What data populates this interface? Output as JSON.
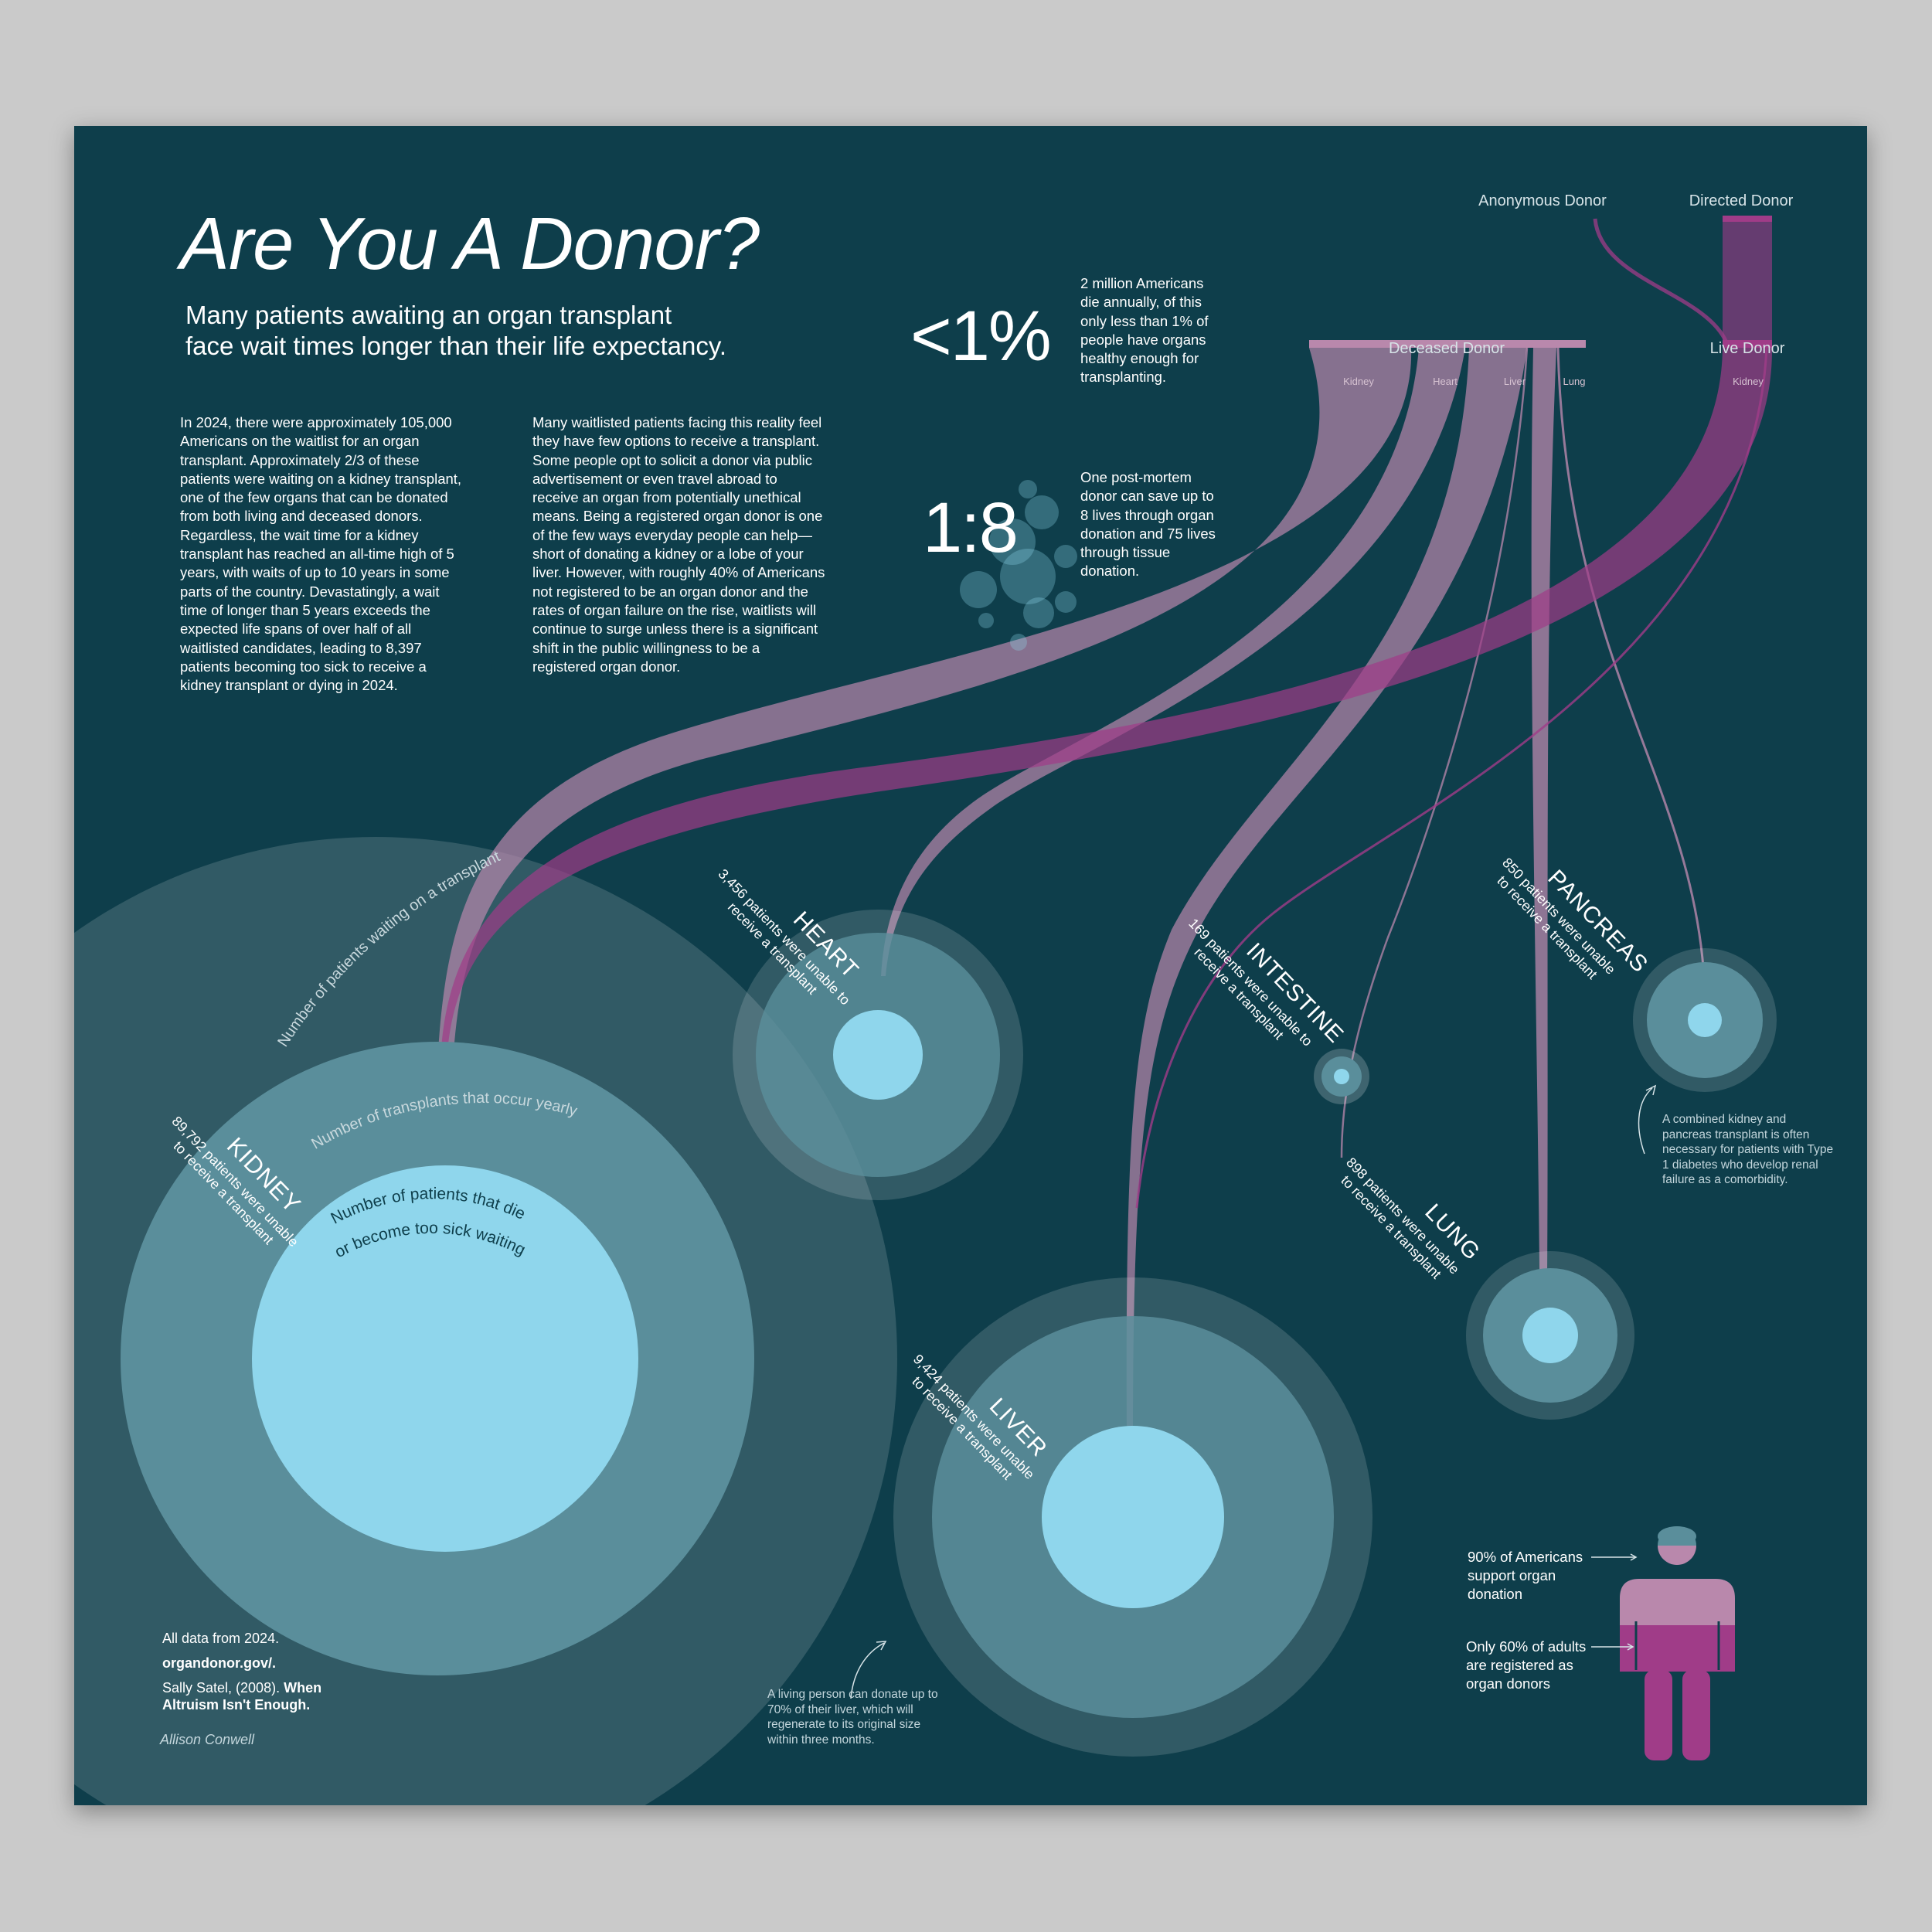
{
  "title": "Are You A Donor?",
  "subtitle_line1": "Many patients awaiting an organ transplant",
  "subtitle_line2": "face wait times longer than their life expectancy.",
  "intro_col1": "In 2024, there were approximately 105,000 Americans on the waitlist for an organ transplant. Approximately 2/3 of these patients were waiting on a kidney transplant, one of the few organs that can be donated from both living and deceased donors. Regardless, the wait time for a kidney transplant has reached an all-time high of 5 years, with waits of up to 10 years in some parts of the country. Devastatingly, a wait time of longer than 5 years exceeds the expected life spans of over half of all waitlisted candidates, leading to 8,397 patients becoming too sick to receive a kidney transplant or dying in 2024.",
  "intro_col2": "Many waitlisted patients facing this reality feel they have few options to receive a transplant. Some people opt to solicit a donor via public advertisement or even travel abroad to receive an organ from potentially unethical means. Being a registered organ donor is one of the few ways everyday people can help—short of donating a kidney or a lobe of your liver. However, with roughly 40% of Americans not registered to be an organ donor and the rates of organ failure on the rise, waitlists will continue to surge unless there is a significant shift in the public willingness to be a registered organ donor.",
  "stat1": {
    "value": "<1%",
    "text": "2 million Americans die annually, of this only less than 1% of people have organs healthy enough for transplanting."
  },
  "stat2": {
    "value": "1:8",
    "text": "One post-mortem donor can save up to 8 lives through organ donation and 75 lives through tissue donation."
  },
  "donors": {
    "anonymous": "Anonymous Donor",
    "directed": "Directed Donor",
    "deceased": "Deceased Donor",
    "live": "Live Donor",
    "deceased_organs": [
      "Kidney",
      "Heart",
      "Liver",
      "Lung"
    ],
    "live_organs": [
      "Kidney"
    ]
  },
  "legend": {
    "waiting": "Number of patients waiting on a transplant",
    "transplants": "Number of transplants that occur yearly",
    "die_line1": "Number of patients that die",
    "die_line2": "or become too sick waiting"
  },
  "organs": {
    "kidney": {
      "name": "KIDNEY",
      "line1": "89,792 patients were unable",
      "line2": "to receive a transplant"
    },
    "heart": {
      "name": "HEART",
      "line1": "3,456 patients were unable to",
      "line2": "receive a transplant"
    },
    "intestine": {
      "name": "INTESTINE",
      "line1": "169 patients were unable to",
      "line2": "receive a transplant"
    },
    "pancreas": {
      "name": "PANCREAS",
      "line1": "850 patients were unable",
      "line2": "to receive a transplant"
    },
    "lung": {
      "name": "LUNG",
      "line1": "898 patients were unable",
      "line2": "to receive a transplant"
    },
    "liver": {
      "name": "LIVER",
      "line1": "9,424 patients were unable",
      "line2": "to receive a transplant"
    }
  },
  "notes": {
    "pancreas": "A combined kidney and pancreas transplant is often necessary for patients with Type 1 diabetes who develop renal failure as a comorbidity.",
    "liver": "A living person can donate up to 70% of their liver, which will regenerate to its original size within three months."
  },
  "figure": {
    "support": "90% of Americans support organ donation",
    "registered": "Only 60% of adults are registered as organ donors",
    "support_pct": 90,
    "registered_pct": 60
  },
  "sources": {
    "line1": "All data from 2024.",
    "line2": "organdonor.gov/.",
    "line3": "Sally Satel, (2008). ",
    "line3_bold": "When Altruism Isn't Enough."
  },
  "author": "Allison Conwell",
  "colors": {
    "background": "#0e3e4b",
    "flow_pink": "#a0708d",
    "flow_magenta": "#a03c88",
    "light_blue": "#8fd6ec",
    "mid_teal": "#5a8e9b",
    "dark_teal": "#2f6170"
  }
}
